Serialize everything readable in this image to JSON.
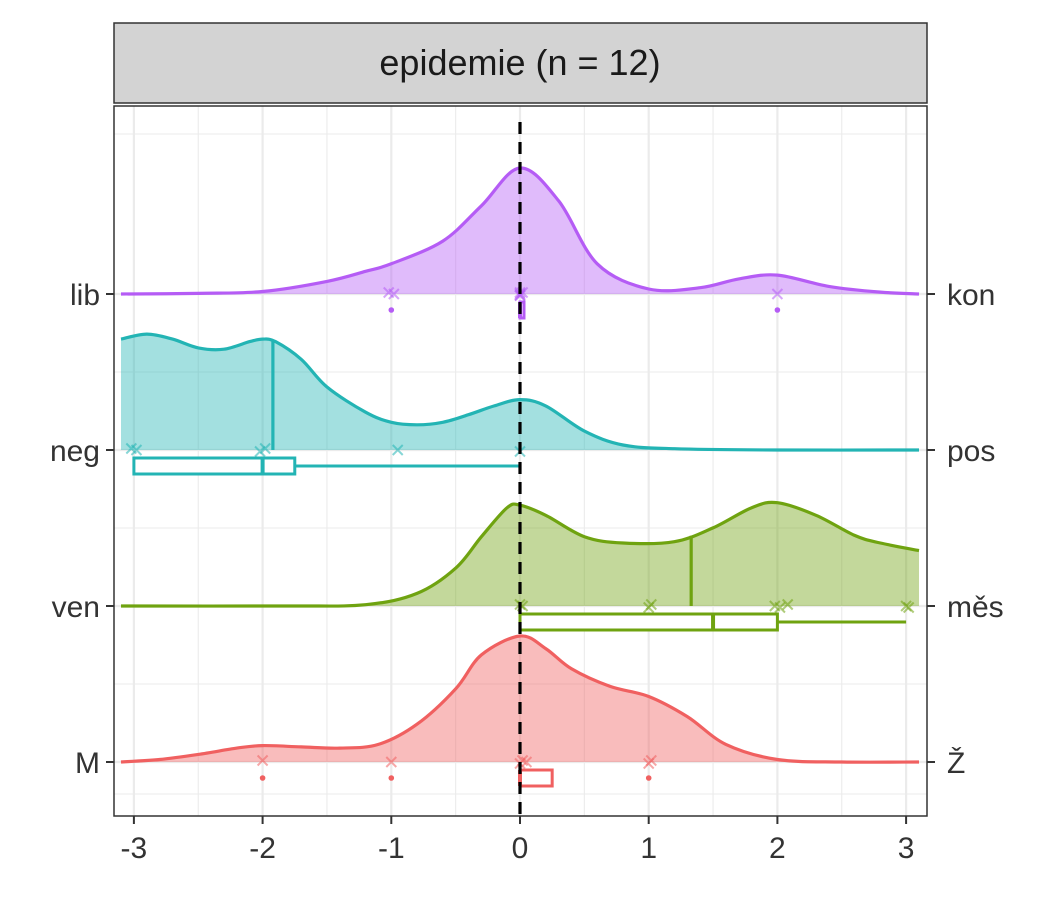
{
  "chart_data": {
    "type": "area",
    "title": "epidemie (n = 12)",
    "xlabel": "",
    "ylabel": "",
    "xlim": [
      -3.12,
      3.12
    ],
    "x_ticks": [
      "-3",
      "-2",
      "-1",
      "0",
      "1",
      "2",
      "3"
    ],
    "reference_line_x": 0,
    "grid": true,
    "facet_strip": true,
    "series": [
      {
        "left_label": "lib",
        "right_label": "kon",
        "color": "#b55cf5",
        "density": {
          "x": [
            -3.1,
            -2.5,
            -2.0,
            -1.5,
            -1.2,
            -1.0,
            -0.6,
            -0.3,
            0,
            0.3,
            0.6,
            1.0,
            1.4,
            1.7,
            2.0,
            2.4,
            2.8,
            3.1
          ],
          "y": [
            0,
            0.005,
            0.02,
            0.1,
            0.18,
            0.24,
            0.42,
            0.7,
            1.0,
            0.74,
            0.24,
            0.04,
            0.05,
            0.12,
            0.15,
            0.06,
            0.015,
            0
          ]
        },
        "points": [
          -1.02,
          -0.98,
          0,
          0,
          0,
          0,
          0.02,
          2.0
        ],
        "boxplot": {
          "q1": 0,
          "median": 0,
          "q3": 0,
          "whisker_low": 0,
          "whisker_high": 0,
          "outliers": [
            -1,
            2
          ]
        }
      },
      {
        "left_label": "neg",
        "right_label": "pos",
        "color": "#23b4b4",
        "density": {
          "x": [
            -3.1,
            -2.9,
            -2.7,
            -2.5,
            -2.3,
            -2.1,
            -2.0,
            -1.9,
            -1.7,
            -1.5,
            -1.2,
            -1.0,
            -0.8,
            -0.6,
            -0.4,
            -0.2,
            0,
            0.2,
            0.5,
            0.8,
            1.2,
            2.0,
            3.1
          ],
          "y": [
            0.88,
            0.92,
            0.88,
            0.81,
            0.8,
            0.86,
            0.88,
            0.86,
            0.72,
            0.5,
            0.3,
            0.22,
            0.2,
            0.22,
            0.28,
            0.35,
            0.4,
            0.35,
            0.15,
            0.04,
            0.01,
            0,
            0
          ]
        },
        "points": [
          -3.02,
          -2.98,
          -2.02,
          -1.98,
          -0.95,
          0
        ],
        "quantile_line_x": -1.92,
        "boxplot": {
          "q1": -3,
          "median": -2,
          "q3": -1.75,
          "whisker_low": -3,
          "whisker_high": 0,
          "outliers": []
        }
      },
      {
        "left_label": "ven",
        "right_label": "měs",
        "color": "#6fa310",
        "density": {
          "x": [
            -3.1,
            -1.8,
            -1.2,
            -0.8,
            -0.5,
            -0.3,
            -0.1,
            0,
            0.2,
            0.5,
            0.8,
            1.2,
            1.5,
            1.8,
            2.0,
            2.3,
            2.6,
            2.8,
            3.1
          ],
          "y": [
            0,
            0,
            0.01,
            0.1,
            0.3,
            0.55,
            0.78,
            0.8,
            0.72,
            0.55,
            0.5,
            0.51,
            0.62,
            0.78,
            0.82,
            0.72,
            0.56,
            0.5,
            0.44
          ]
        },
        "points": [
          0,
          0.02,
          1.0,
          1.02,
          1.98,
          2.02,
          2.08,
          3.0,
          3.02
        ],
        "quantile_line_x": 1.33,
        "boxplot": {
          "q1": 0,
          "median": 1.5,
          "q3": 2,
          "whisker_low": 0,
          "whisker_high": 3,
          "outliers": []
        }
      },
      {
        "left_label": "M",
        "right_label": "Ž",
        "color": "#f06060",
        "density": {
          "x": [
            -3.1,
            -2.8,
            -2.5,
            -2.2,
            -2.0,
            -1.7,
            -1.4,
            -1.1,
            -0.8,
            -0.5,
            -0.3,
            0,
            0.2,
            0.4,
            0.7,
            1.0,
            1.3,
            1.6,
            2.0,
            2.5,
            3.1
          ],
          "y": [
            0,
            0.02,
            0.06,
            0.11,
            0.13,
            0.12,
            0.11,
            0.14,
            0.3,
            0.58,
            0.85,
            1.0,
            0.9,
            0.74,
            0.6,
            0.52,
            0.36,
            0.14,
            0.02,
            0,
            0
          ]
        },
        "points": [
          -2.0,
          -1.0,
          0,
          0.02,
          0.05,
          1.0,
          1.02
        ],
        "boxplot": {
          "q1": 0,
          "median": 0,
          "q3": 0.25,
          "whisker_low": 0,
          "whisker_high": 0.25,
          "outliers": [
            -2,
            -1,
            1
          ]
        }
      }
    ]
  }
}
